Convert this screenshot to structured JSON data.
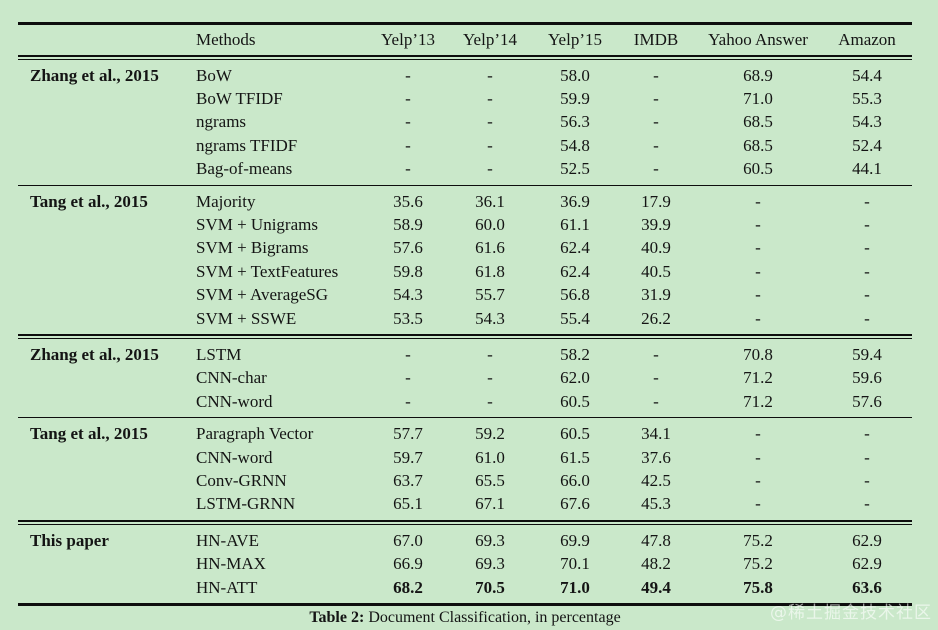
{
  "page": {
    "background": "#cae8ca",
    "text_color": "#141414",
    "rule_color": "#0e0e0e"
  },
  "table": {
    "columns": [
      "",
      "Methods",
      "Yelp’13",
      "Yelp’14",
      "Yelp’15",
      "IMDB",
      "Yahoo Answer",
      "Amazon"
    ],
    "groups": [
      {
        "label": "Zhang et al., 2015",
        "rule_below": "single",
        "rows": [
          {
            "method": "BoW",
            "values": [
              "-",
              "-",
              "58.0",
              "-",
              "68.9",
              "54.4"
            ]
          },
          {
            "method": "BoW TFIDF",
            "values": [
              "-",
              "-",
              "59.9",
              "-",
              "71.0",
              "55.3"
            ]
          },
          {
            "method": "ngrams",
            "values": [
              "-",
              "-",
              "56.3",
              "-",
              "68.5",
              "54.3"
            ]
          },
          {
            "method": "ngrams TFIDF",
            "values": [
              "-",
              "-",
              "54.8",
              "-",
              "68.5",
              "52.4"
            ]
          },
          {
            "method": "Bag-of-means",
            "values": [
              "-",
              "-",
              "52.5",
              "-",
              "60.5",
              "44.1"
            ]
          }
        ]
      },
      {
        "label": "Tang et al., 2015",
        "rule_below": "double",
        "rows": [
          {
            "method": "Majority",
            "values": [
              "35.6",
              "36.1",
              "36.9",
              "17.9",
              "-",
              "-"
            ]
          },
          {
            "method": "SVM + Unigrams",
            "values": [
              "58.9",
              "60.0",
              "61.1",
              "39.9",
              "-",
              "-"
            ]
          },
          {
            "method": "SVM + Bigrams",
            "values": [
              "57.6",
              "61.6",
              "62.4",
              "40.9",
              "-",
              "-"
            ]
          },
          {
            "method": "SVM + TextFeatures",
            "values": [
              "59.8",
              "61.8",
              "62.4",
              "40.5",
              "-",
              "-"
            ]
          },
          {
            "method": "SVM + AverageSG",
            "values": [
              "54.3",
              "55.7",
              "56.8",
              "31.9",
              "-",
              "-"
            ]
          },
          {
            "method": "SVM + SSWE",
            "values": [
              "53.5",
              "54.3",
              "55.4",
              "26.2",
              "-",
              "-"
            ]
          }
        ]
      },
      {
        "label": "Zhang et al., 2015",
        "rule_below": "single",
        "rows": [
          {
            "method": "LSTM",
            "values": [
              "-",
              "-",
              "58.2",
              "-",
              "70.8",
              "59.4"
            ]
          },
          {
            "method": "CNN-char",
            "values": [
              "-",
              "-",
              "62.0",
              "-",
              "71.2",
              "59.6"
            ]
          },
          {
            "method": "CNN-word",
            "values": [
              "-",
              "-",
              "60.5",
              "-",
              "71.2",
              "57.6"
            ]
          }
        ]
      },
      {
        "label": "Tang et al., 2015",
        "rule_below": "double",
        "rows": [
          {
            "method": "Paragraph Vector",
            "values": [
              "57.7",
              "59.2",
              "60.5",
              "34.1",
              "-",
              "-"
            ]
          },
          {
            "method": "CNN-word",
            "values": [
              "59.7",
              "61.0",
              "61.5",
              "37.6",
              "-",
              "-"
            ]
          },
          {
            "method": "Conv-GRNN",
            "values": [
              "63.7",
              "65.5",
              "66.0",
              "42.5",
              "-",
              "-"
            ]
          },
          {
            "method": "LSTM-GRNN",
            "values": [
              "65.1",
              "67.1",
              "67.6",
              "45.3",
              "-",
              "-"
            ]
          }
        ]
      },
      {
        "label": "This paper",
        "rule_below": "none",
        "rows": [
          {
            "method": "HN-AVE",
            "values": [
              "67.0",
              "69.3",
              "69.9",
              "47.8",
              "75.2",
              "62.9"
            ]
          },
          {
            "method": "HN-MAX",
            "values": [
              "66.9",
              "69.3",
              "70.1",
              "48.2",
              "75.2",
              "62.9"
            ]
          },
          {
            "method": "HN-ATT",
            "bold_values": true,
            "values": [
              "68.2",
              "70.5",
              "71.0",
              "49.4",
              "75.8",
              "63.6"
            ]
          }
        ]
      }
    ],
    "caption": {
      "label": "Table 2:",
      "text": " Document Classification, in percentage"
    }
  },
  "watermark": "@稀土掘金技术社区"
}
